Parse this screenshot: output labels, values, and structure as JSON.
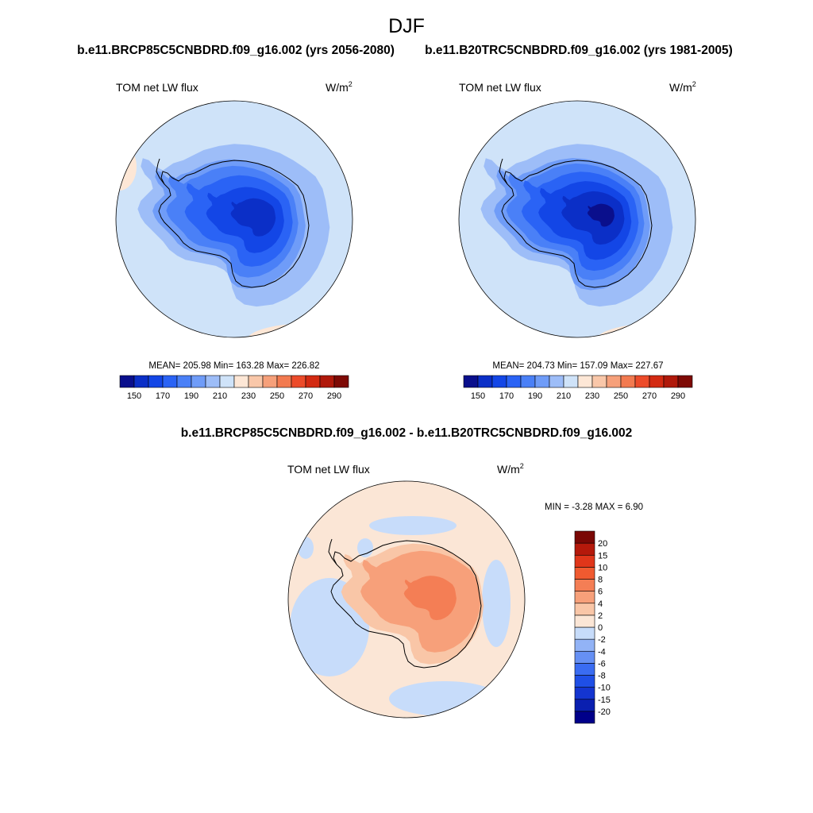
{
  "figure": {
    "title": "DJF",
    "case_label_left": "b.e11.BRCP85C5CNBDRD.f09_g16.002 (yrs 2056-2080)",
    "case_label_right": "b.e11.B20TRC5CNBDRD.f09_g16.002 (yrs 1981-2005)",
    "diff_title": "b.e11.BRCP85C5CNBDRD.f09_g16.002 - b.e11.B20TRC5CNBDRD.f09_g16.002"
  },
  "chart_data": [
    {
      "type": "heatmap",
      "projection": "south-polar-stereographic",
      "variable": "TOM net LW flux",
      "units_base": "W/m",
      "units_exp": "2",
      "stats": "MEAN= 205.98  Min= 163.28  Max= 226.82",
      "mean": 205.98,
      "min": 163.28,
      "max": 226.82,
      "colorbar": {
        "orientation": "horizontal",
        "levels": [
          150,
          160,
          170,
          180,
          190,
          200,
          210,
          220,
          230,
          240,
          250,
          260,
          270,
          280,
          290
        ],
        "tick_labels": [
          "150",
          "170",
          "190",
          "210",
          "230",
          "250",
          "270",
          "290"
        ],
        "colors": [
          "#0a0f8c",
          "#0b2fc7",
          "#1346e6",
          "#2a63f5",
          "#4a80f7",
          "#6f9cf8",
          "#9dbdf8",
          "#cfe3f9",
          "#fde7d6",
          "#f9c7a9",
          "#f6a07a",
          "#f27a50",
          "#ec4b2a",
          "#d32a12",
          "#b0190b",
          "#7e0a05"
        ]
      }
    },
    {
      "type": "heatmap",
      "projection": "south-polar-stereographic",
      "variable": "TOM net LW flux",
      "units_base": "W/m",
      "units_exp": "2",
      "stats": "MEAN= 204.73  Min= 157.09  Max= 227.67",
      "mean": 204.73,
      "min": 157.09,
      "max": 227.67,
      "colorbar": {
        "orientation": "horizontal",
        "levels": [
          150,
          160,
          170,
          180,
          190,
          200,
          210,
          220,
          230,
          240,
          250,
          260,
          270,
          280,
          290
        ],
        "tick_labels": [
          "150",
          "170",
          "190",
          "210",
          "230",
          "250",
          "270",
          "290"
        ],
        "colors": [
          "#0a0f8c",
          "#0b2fc7",
          "#1346e6",
          "#2a63f5",
          "#4a80f7",
          "#6f9cf8",
          "#9dbdf8",
          "#cfe3f9",
          "#fde7d6",
          "#f9c7a9",
          "#f6a07a",
          "#f27a50",
          "#ec4b2a",
          "#d32a12",
          "#b0190b",
          "#7e0a05"
        ]
      }
    },
    {
      "type": "heatmap",
      "projection": "south-polar-stereographic",
      "variable": "TOM net LW flux",
      "units_base": "W/m",
      "units_exp": "2",
      "stats": "MIN =  -3.28 MAX =   6.90",
      "min": -3.28,
      "max": 6.9,
      "colorbar": {
        "orientation": "vertical",
        "levels": [
          -20,
          -15,
          -10,
          -8,
          -6,
          -4,
          -2,
          0,
          2,
          4,
          6,
          8,
          10,
          15,
          20
        ],
        "tick_labels": [
          "-20",
          "-15",
          "-10",
          "-8",
          "-6",
          "-4",
          "-2",
          "0",
          "2",
          "4",
          "6",
          "8",
          "10",
          "15",
          "20"
        ],
        "colors": [
          "#00008a",
          "#0a1fb0",
          "#1435d0",
          "#1f4fe6",
          "#3a6cf2",
          "#6690f4",
          "#92b3f6",
          "#c7dcfa",
          "#fbe6d6",
          "#f9c6a7",
          "#f7a07a",
          "#f47e55",
          "#f05a30",
          "#e0361a",
          "#b5190b",
          "#7a0805"
        ]
      }
    }
  ]
}
